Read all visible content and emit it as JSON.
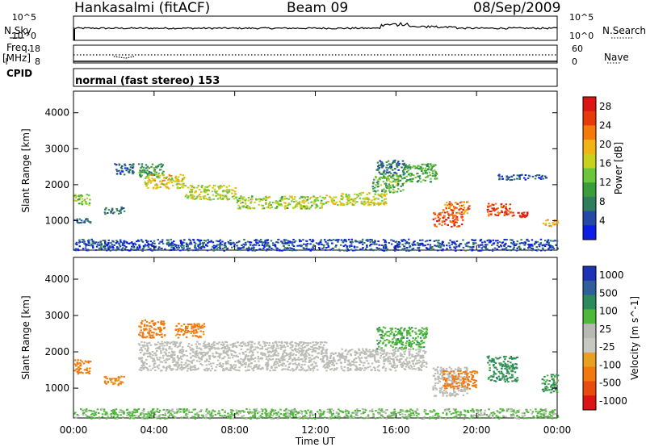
{
  "header": {
    "station": "Hankasalmi (fitACF)",
    "beam": "Beam 09",
    "date": "08/Sep/2009"
  },
  "noise_panel": {
    "left_label": "N.Sky",
    "right_label": "N.Search",
    "left_ticks": [
      "10^5",
      "10^0"
    ],
    "right_ticks": [
      "10^5",
      "10^0"
    ]
  },
  "freq_panel": {
    "left_label": "Freq.",
    "left_unit": "[MHz]",
    "right_label": "Nave",
    "left_ticks": [
      "18",
      "8"
    ],
    "right_ticks": [
      "60",
      "0"
    ]
  },
  "cpid": {
    "label": "CPID",
    "text": "normal (fast stereo) 153"
  },
  "colors": {
    "power_scale": [
      "#0a1ee6",
      "#2449a6",
      "#2f7d5a",
      "#3a9c3a",
      "#6cc63c",
      "#c8d21e",
      "#f0b414",
      "#f57a0a",
      "#e63a0a",
      "#dc1414"
    ],
    "velocity_scale": [
      "#1e32b4",
      "#2f5f9a",
      "#2d8a5a",
      "#4fb83a",
      "#b9b9b3",
      "#c8c8c2",
      "#e8a020",
      "#f07a10",
      "#e84a10",
      "#dc1414"
    ],
    "ground_scatter": "#bcbcb6"
  },
  "chart_data": [
    {
      "type": "heatmap",
      "title": "",
      "xlabel": "",
      "ylabel": "Slant Range [km]",
      "x_ticks": [
        "00:00",
        "04:00",
        "08:00",
        "12:00",
        "16:00",
        "20:00",
        "00:00"
      ],
      "xlim_hours": [
        0,
        24
      ],
      "y_ticks": [
        1000,
        2000,
        3000,
        4000
      ],
      "ylim_km": [
        180,
        4600
      ],
      "colorbar": {
        "label": "Power [dB]",
        "ticks": [
          4,
          8,
          12,
          16,
          20,
          24,
          28
        ],
        "range": [
          0,
          30
        ]
      },
      "scatter_regions": [
        {
          "t0": 0.0,
          "t1": 0.8,
          "r0": 1450,
          "r1": 1750,
          "v": 14
        },
        {
          "t0": 1.5,
          "t1": 2.5,
          "r0": 1200,
          "r1": 1400,
          "v": 8
        },
        {
          "t0": 0.0,
          "t1": 0.8,
          "r0": 950,
          "r1": 1080,
          "v": 6
        },
        {
          "t0": 2.0,
          "t1": 3.0,
          "r0": 2300,
          "r1": 2600,
          "v": 5
        },
        {
          "t0": 3.2,
          "t1": 4.5,
          "r0": 2200,
          "r1": 2600,
          "v": 10
        },
        {
          "t0": 3.5,
          "t1": 5.5,
          "r0": 1900,
          "r1": 2300,
          "v": 18
        },
        {
          "t0": 5.5,
          "t1": 8.0,
          "r0": 1600,
          "r1": 2000,
          "v": 16
        },
        {
          "t0": 8.0,
          "t1": 12.5,
          "r0": 1350,
          "r1": 1700,
          "v": 15
        },
        {
          "t0": 12.5,
          "t1": 15.5,
          "r0": 1450,
          "r1": 1800,
          "v": 17
        },
        {
          "t0": 14.8,
          "t1": 16.4,
          "r0": 1800,
          "r1": 2300,
          "v": 12
        },
        {
          "t0": 15.0,
          "t1": 16.5,
          "r0": 2300,
          "r1": 2700,
          "v": 6
        },
        {
          "t0": 16.3,
          "t1": 18.0,
          "r0": 2100,
          "r1": 2600,
          "v": 11
        },
        {
          "t0": 17.8,
          "t1": 19.3,
          "r0": 850,
          "r1": 1250,
          "v": 25
        },
        {
          "t0": 18.3,
          "t1": 19.6,
          "r0": 1200,
          "r1": 1550,
          "v": 23
        },
        {
          "t0": 20.5,
          "t1": 21.8,
          "r0": 1150,
          "r1": 1500,
          "v": 26
        },
        {
          "t0": 21.0,
          "t1": 23.5,
          "r0": 2150,
          "r1": 2300,
          "v": 5
        },
        {
          "t0": 22.0,
          "t1": 22.5,
          "r0": 1100,
          "r1": 1250,
          "v": 27
        },
        {
          "t0": 23.2,
          "t1": 24.0,
          "r0": 850,
          "r1": 1050,
          "v": 20
        },
        {
          "t0": 0.0,
          "t1": 24.0,
          "r0": 180,
          "r1": 500,
          "v": 4
        }
      ]
    },
    {
      "type": "heatmap",
      "title": "",
      "xlabel": "Time UT",
      "ylabel": "Slant Range [km]",
      "x_ticks": [
        "00:00",
        "04:00",
        "08:00",
        "12:00",
        "16:00",
        "20:00",
        "00:00"
      ],
      "xlim_hours": [
        0,
        24
      ],
      "y_ticks": [
        1000,
        2000,
        3000,
        4000
      ],
      "ylim_km": [
        180,
        4600
      ],
      "colorbar": {
        "label": "Velocity [m s^-1]",
        "ticks": [
          "1000",
          "500",
          "100",
          "25",
          "-25",
          "-100",
          "-500",
          "-1000"
        ]
      },
      "scatter_regions": [
        {
          "t0": 3.2,
          "t1": 12.5,
          "r0": 1500,
          "r1": 2300,
          "v": 0
        },
        {
          "t0": 12.5,
          "t1": 17.5,
          "r0": 1500,
          "r1": 2100,
          "v": 0
        },
        {
          "t0": 3.2,
          "t1": 4.5,
          "r0": 2400,
          "r1": 2900,
          "v": -200
        },
        {
          "t0": 5.0,
          "t1": 6.5,
          "r0": 2400,
          "r1": 2800,
          "v": -150
        },
        {
          "t0": 0.0,
          "t1": 0.8,
          "r0": 1400,
          "r1": 1800,
          "v": -150
        },
        {
          "t0": 1.5,
          "t1": 2.5,
          "r0": 1100,
          "r1": 1350,
          "v": -120
        },
        {
          "t0": 15.0,
          "t1": 17.5,
          "r0": 2100,
          "r1": 2700,
          "v": 80
        },
        {
          "t0": 17.8,
          "t1": 19.5,
          "r0": 800,
          "r1": 1600,
          "v": 0
        },
        {
          "t0": 18.3,
          "t1": 20.0,
          "r0": 1000,
          "r1": 1500,
          "v": -300
        },
        {
          "t0": 20.5,
          "t1": 22.0,
          "r0": 1200,
          "r1": 1900,
          "v": 150
        },
        {
          "t0": 23.2,
          "t1": 24.0,
          "r0": 900,
          "r1": 1400,
          "v": 120
        },
        {
          "t0": 0.0,
          "t1": 24.0,
          "r0": 180,
          "r1": 450,
          "v": 30
        }
      ]
    }
  ]
}
